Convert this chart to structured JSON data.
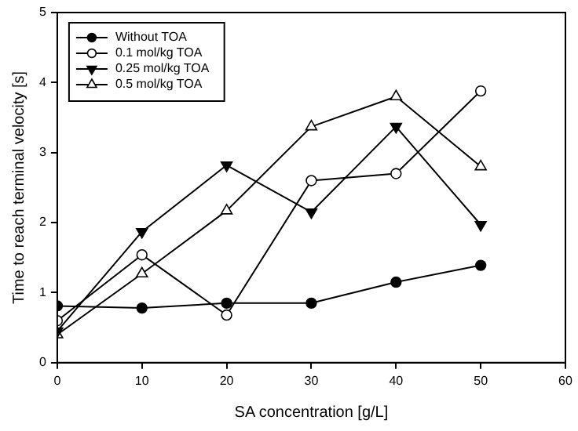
{
  "chart_data": {
    "type": "line",
    "xlabel": "SA concentration [g/L]",
    "ylabel": "Time to reach terminal velocity [s]",
    "x": [
      0,
      10,
      20,
      30,
      40,
      50
    ],
    "series": [
      {
        "name": "Without TOA",
        "color": "#000000",
        "marker": "circle",
        "values": [
          0.81,
          0.78,
          0.85,
          0.85,
          1.15,
          1.39
        ]
      },
      {
        "name": "0.1 mol/kg TOA",
        "color": "#000000",
        "marker": "circle",
        "values": [
          0.6,
          1.54,
          0.68,
          2.6,
          2.7,
          3.88
        ]
      },
      {
        "name": "0.25 mol/kg TOA",
        "color": "#000000",
        "marker": "triangle",
        "values": [
          0.45,
          1.87,
          2.82,
          2.15,
          3.37,
          1.97
        ]
      },
      {
        "name": "0.5 mol/kg TOA",
        "color": "#000000",
        "marker": "triangle",
        "values": [
          0.4,
          1.27,
          2.17,
          3.37,
          3.8,
          2.8
        ]
      }
    ],
    "xlim": [
      0,
      60
    ],
    "xticks": [
      0,
      10,
      20,
      30,
      40,
      50,
      60
    ],
    "ylim": [
      0,
      5
    ],
    "yticks": [
      0,
      1,
      2,
      3,
      4,
      5
    ],
    "grid": false,
    "legend": "top left",
    "line_style": "solid"
  }
}
